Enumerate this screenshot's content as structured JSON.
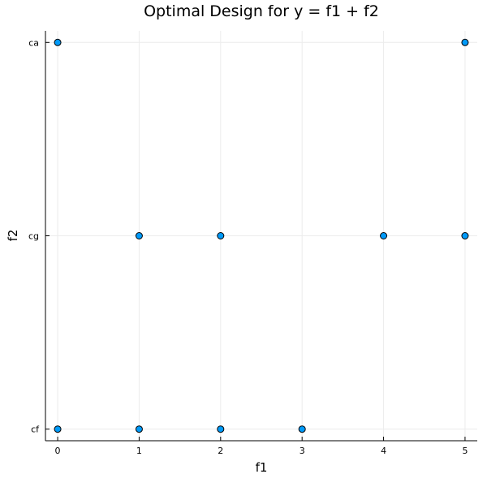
{
  "chart_data": {
    "type": "scatter",
    "title": "Optimal Design for y = f1 + f2",
    "xlabel": "f1",
    "ylabel": "f2",
    "xlim": [
      -0.15,
      5.15
    ],
    "x_ticks": [
      0,
      1,
      2,
      3,
      4,
      5
    ],
    "y_categories": [
      "cf",
      "cg",
      "ca"
    ],
    "grid": true,
    "legend": "none",
    "marker_color": "#009af9",
    "points": [
      {
        "x": 0,
        "y": "ca"
      },
      {
        "x": 5,
        "y": "ca"
      },
      {
        "x": 1,
        "y": "cg"
      },
      {
        "x": 2,
        "y": "cg"
      },
      {
        "x": 4,
        "y": "cg"
      },
      {
        "x": 5,
        "y": "cg"
      },
      {
        "x": 0,
        "y": "cf"
      },
      {
        "x": 1,
        "y": "cf"
      },
      {
        "x": 2,
        "y": "cf"
      },
      {
        "x": 3,
        "y": "cf"
      }
    ]
  }
}
